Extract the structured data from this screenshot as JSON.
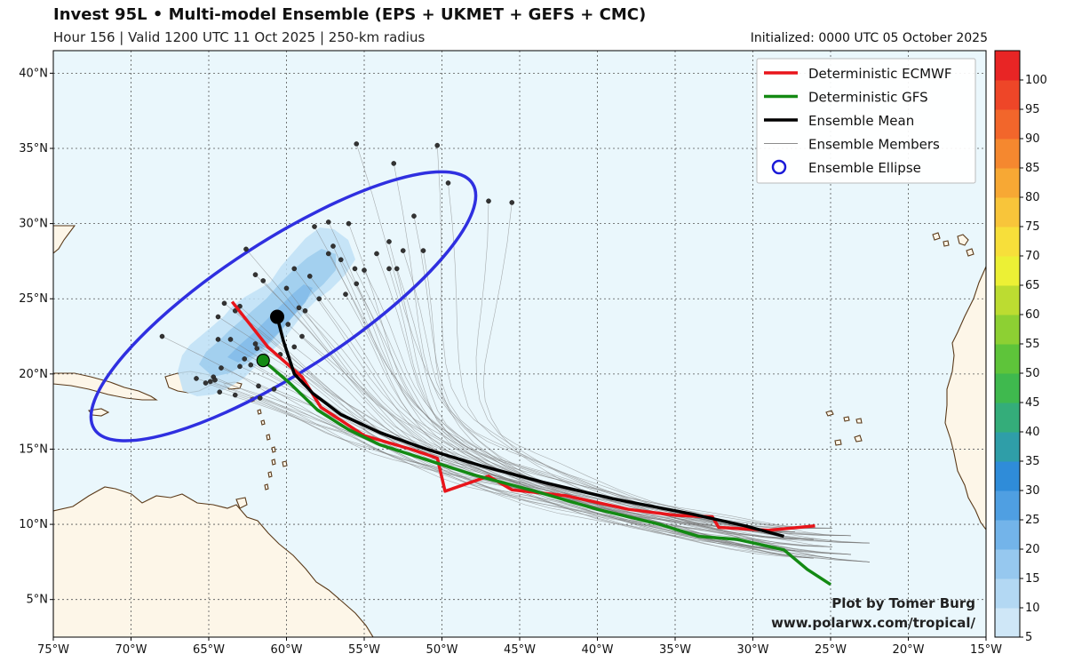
{
  "header": {
    "title": "Invest 95L • Multi-model Ensemble (EPS + UKMET + GEFS + CMC)",
    "subtitle": "Hour 156 | Valid 1200 UTC 11 Oct 2025 | 250-km radius",
    "initialized": "Initialized: 0000 UTC 05 October 2025"
  },
  "map": {
    "lon_range": [
      -75,
      -15
    ],
    "lat_range": [
      2.5,
      41.5
    ],
    "lon_ticks": [
      -75,
      -70,
      -65,
      -60,
      -55,
      -50,
      -45,
      -40,
      -35,
      -30,
      -25,
      -20,
      -15
    ],
    "lon_labels": [
      "75°W",
      "70°W",
      "65°W",
      "60°W",
      "55°W",
      "50°W",
      "45°W",
      "40°W",
      "35°W",
      "30°W",
      "25°W",
      "20°W",
      "15°W"
    ],
    "lat_ticks": [
      5,
      10,
      15,
      20,
      25,
      30,
      35,
      40
    ],
    "lat_labels": [
      "5°N",
      "10°N",
      "15°N",
      "20°N",
      "25°N",
      "30°N",
      "35°N",
      "40°N"
    ],
    "ocean_color": "#eaf7fc",
    "land_color": "#fdf6e8",
    "coast_color": "#5a3a1a"
  },
  "legend": {
    "items": [
      {
        "label": "Deterministic ECMWF",
        "color": "#e8151b",
        "kind": "thick"
      },
      {
        "label": "Deterministic GFS",
        "color": "#138a13",
        "kind": "thick"
      },
      {
        "label": "Ensemble Mean",
        "color": "#000000",
        "kind": "thick"
      },
      {
        "label": "Ensemble Members",
        "color": "#666666",
        "kind": "thin"
      },
      {
        "label": "Ensemble Ellipse",
        "color": "#1a1ad8",
        "kind": "circle"
      }
    ]
  },
  "colorbar": {
    "labels": [
      "5",
      "10",
      "15",
      "20",
      "25",
      "30",
      "35",
      "40",
      "45",
      "50",
      "55",
      "60",
      "65",
      "70",
      "75",
      "80",
      "85",
      "90",
      "95",
      "100"
    ],
    "colors": [
      "#cfe7f7",
      "#b3d8f3",
      "#96c8ef",
      "#73b4ea",
      "#4f9fe2",
      "#2f8cd9",
      "#2f9ea8",
      "#34ad7a",
      "#3fb94e",
      "#5ec43a",
      "#8dd033",
      "#bcdc31",
      "#ecf035",
      "#f7df3a",
      "#f8c53a",
      "#f7a834",
      "#f5882f",
      "#f2662b",
      "#ee4628",
      "#e82525"
    ]
  },
  "credit": {
    "line1": "Plot by Tomer Burg",
    "line2": "www.polarwx.com/tropical/"
  },
  "chart_data": {
    "type": "map-tracks",
    "ecmwf_track": [
      [
        -63.5,
        24.8
      ],
      [
        -61.2,
        21.8
      ],
      [
        -59.0,
        19.8
      ],
      [
        -57.8,
        17.8
      ],
      [
        -55.0,
        15.9
      ],
      [
        -52.0,
        15.0
      ],
      [
        -50.3,
        14.4
      ],
      [
        -49.8,
        12.2
      ],
      [
        -47.0,
        13.2
      ],
      [
        -45.5,
        12.3
      ],
      [
        -42.0,
        11.9
      ],
      [
        -38.0,
        11.0
      ],
      [
        -35.0,
        10.6
      ],
      [
        -32.6,
        10.5
      ],
      [
        -32.2,
        9.8
      ],
      [
        -29.0,
        9.6
      ],
      [
        -26.0,
        9.9
      ]
    ],
    "gfs_track": [
      [
        -61.5,
        20.9
      ],
      [
        -59.8,
        19.4
      ],
      [
        -58.0,
        17.6
      ],
      [
        -56.0,
        16.3
      ],
      [
        -54.0,
        15.3
      ],
      [
        -51.0,
        14.3
      ],
      [
        -48.0,
        13.3
      ],
      [
        -44.0,
        12.2
      ],
      [
        -40.0,
        11.0
      ],
      [
        -36.0,
        10.0
      ],
      [
        -33.5,
        9.2
      ],
      [
        -31.0,
        9.0
      ],
      [
        -28.0,
        8.3
      ],
      [
        -26.5,
        7.0
      ],
      [
        -25.0,
        6.0
      ]
    ],
    "ensemble_mean": [
      [
        -60.6,
        23.8
      ],
      [
        -60.2,
        22.2
      ],
      [
        -59.5,
        20.0
      ],
      [
        -58.3,
        18.7
      ],
      [
        -56.5,
        17.3
      ],
      [
        -54.0,
        16.1
      ],
      [
        -51.0,
        15.0
      ],
      [
        -47.5,
        13.9
      ],
      [
        -43.5,
        12.8
      ],
      [
        -39.0,
        11.7
      ],
      [
        -34.0,
        10.7
      ],
      [
        -30.5,
        9.9
      ],
      [
        -28.0,
        9.2
      ]
    ],
    "gfs_marker": [
      -61.5,
      20.9
    ],
    "mean_marker": [
      -60.6,
      23.8
    ],
    "ellipse": {
      "center": [
        -60.2,
        24.5
      ],
      "semi_major_deg_lon": 14.5,
      "semi_minor_deg_lon": 4.2,
      "tilt_deg": 33
    },
    "member_points": [
      [
        -62.6,
        28.3
      ],
      [
        -62.0,
        26.6
      ],
      [
        -61.5,
        26.2
      ],
      [
        -63.0,
        24.5
      ],
      [
        -63.3,
        24.2
      ],
      [
        -64.4,
        22.3
      ],
      [
        -63.6,
        22.3
      ],
      [
        -62.0,
        22.0
      ],
      [
        -61.9,
        21.7
      ],
      [
        -62.7,
        21.0
      ],
      [
        -62.3,
        20.6
      ],
      [
        -63.0,
        20.5
      ],
      [
        -64.2,
        20.4
      ],
      [
        -64.7,
        19.8
      ],
      [
        -64.9,
        19.5
      ],
      [
        -65.8,
        19.7
      ],
      [
        -65.2,
        19.4
      ],
      [
        -64.6,
        19.6
      ],
      [
        -64.3,
        18.8
      ],
      [
        -63.3,
        18.6
      ],
      [
        -61.7,
        18.4
      ],
      [
        -61.8,
        19.2
      ],
      [
        -60.8,
        19.0
      ],
      [
        -60.4,
        21.3
      ],
      [
        -59.5,
        21.8
      ],
      [
        -59.0,
        22.5
      ],
      [
        -59.2,
        24.4
      ],
      [
        -58.8,
        24.2
      ],
      [
        -59.9,
        23.3
      ],
      [
        -60.0,
        25.7
      ],
      [
        -59.5,
        27.0
      ],
      [
        -58.5,
        26.5
      ],
      [
        -57.9,
        25.0
      ],
      [
        -56.2,
        25.3
      ],
      [
        -55.5,
        26.0
      ],
      [
        -56.5,
        27.6
      ],
      [
        -57.3,
        28.0
      ],
      [
        -58.2,
        29.8
      ],
      [
        -57.3,
        30.1
      ],
      [
        -57.0,
        28.5
      ],
      [
        -55.6,
        27.0
      ],
      [
        -55.0,
        26.9
      ],
      [
        -54.2,
        28.0
      ],
      [
        -53.4,
        28.8
      ],
      [
        -53.4,
        27.0
      ],
      [
        -52.5,
        28.2
      ],
      [
        -52.9,
        27.0
      ],
      [
        -51.8,
        30.5
      ],
      [
        -51.2,
        28.2
      ],
      [
        -56.0,
        30.0
      ],
      [
        -49.6,
        32.7
      ],
      [
        -47.0,
        31.5
      ],
      [
        -45.5,
        31.4
      ],
      [
        -53.1,
        34.0
      ],
      [
        -50.3,
        35.2
      ],
      [
        -55.5,
        35.3
      ],
      [
        -68.0,
        22.5
      ],
      [
        -64.4,
        23.8
      ],
      [
        -64.0,
        24.7
      ]
    ]
  }
}
